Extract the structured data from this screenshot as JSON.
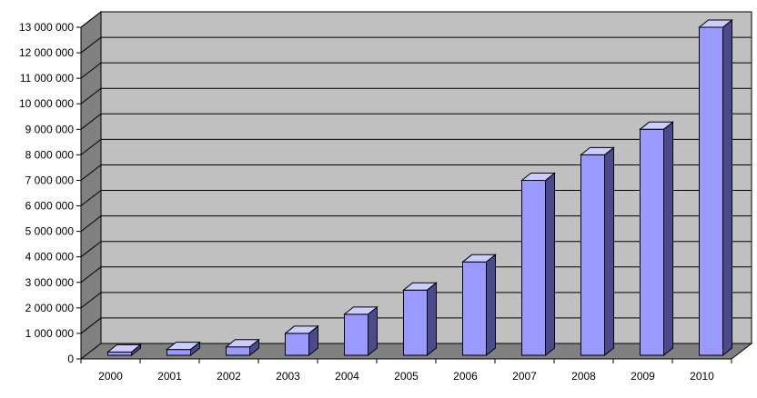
{
  "chart_data": {
    "type": "bar",
    "style": "3d-column",
    "categories": [
      "2000",
      "2001",
      "2002",
      "2003",
      "2004",
      "2005",
      "2006",
      "2007",
      "2008",
      "2009",
      "2010"
    ],
    "values": [
      200000,
      300000,
      400000,
      1000000,
      1750000,
      2700000,
      3800000,
      7000000,
      8000000,
      9000000,
      13000000
    ],
    "y_ticks": [
      0,
      1000000,
      2000000,
      3000000,
      4000000,
      5000000,
      6000000,
      7000000,
      8000000,
      9000000,
      10000000,
      11000000,
      12000000,
      13000000
    ],
    "y_tick_labels": [
      "0",
      "1 000 000",
      "2 000 000",
      "3 000 000",
      "4 000 000",
      "5 000 000",
      "6 000 000",
      "7 000 000",
      "8 000 000",
      "9 000 000",
      "10 000 000",
      "11 000 000",
      "12 000 000",
      "13 000 000"
    ],
    "ylim": [
      0,
      13000000
    ],
    "title": "",
    "xlabel": "",
    "ylabel": "",
    "grid": true,
    "legend": "none",
    "colors": {
      "bar_front": "#9999ff",
      "bar_top": "#ccccff",
      "bar_side": "#4a4a8c",
      "back_wall": "#c0c0c0",
      "side_wall": "#808080",
      "floor": "#808080",
      "gridline": "#000000"
    }
  }
}
